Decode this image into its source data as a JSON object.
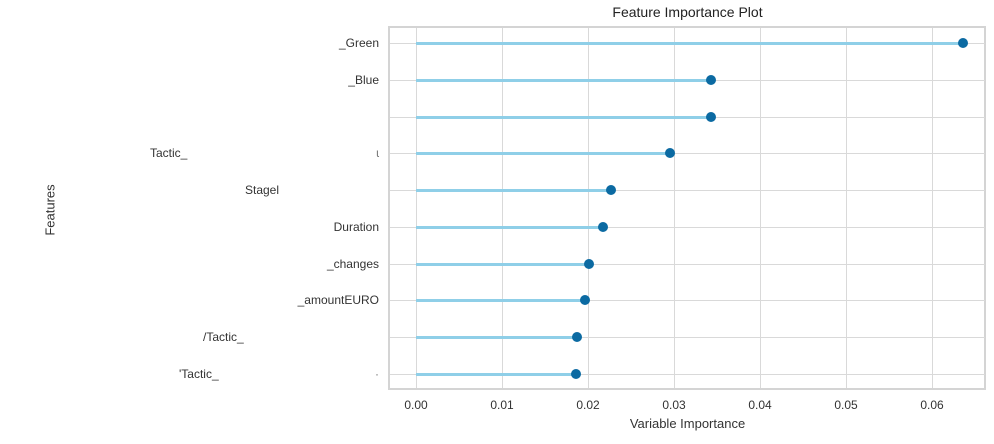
{
  "chart_data": {
    "type": "lollipop",
    "title": "Feature Importance Plot",
    "xlabel": "Variable Importance",
    "ylabel": "Features",
    "xlim": [
      -0.0033,
      0.0665
    ],
    "x_ticks": [
      "0.00",
      "0.01",
      "0.02",
      "0.03",
      "0.04",
      "0.05",
      "0.06"
    ],
    "grid": true,
    "colors": {
      "stem": "#8fcfe8",
      "dot": "#0b6aa2",
      "grid": "#d9d9d9"
    },
    "categories": [
      {
        "label_right": "_Green",
        "label_left": "",
        "value": 0.0636
      },
      {
        "label_right": "_Blue",
        "label_left": "",
        "value": 0.0343
      },
      {
        "label_right": "",
        "label_left": "",
        "value": 0.0343
      },
      {
        "label_right": "ɩ",
        "label_left": "Tactic_",
        "value": 0.0295
      },
      {
        "label_right": "",
        "label_left": "Stagel",
        "value": 0.0227
      },
      {
        "label_right": "Duration",
        "label_left": "",
        "value": 0.0217
      },
      {
        "label_right": "_changes",
        "label_left": "",
        "value": 0.0201
      },
      {
        "label_right": "_amountEURO",
        "label_left": "",
        "value": 0.0196
      },
      {
        "label_right": "",
        "label_left": "/Tactic_",
        "value": 0.0187
      },
      {
        "label_right": "·",
        "label_left": "'Tactic_",
        "value": 0.0186
      }
    ]
  },
  "labels": {
    "title": "Feature Importance Plot",
    "xlabel": "Variable Importance",
    "ylabel": "Features",
    "x_ticks": [
      "0.00",
      "0.01",
      "0.02",
      "0.03",
      "0.04",
      "0.05",
      "0.06"
    ],
    "rows": [
      {
        "right": "_Green",
        "left": ""
      },
      {
        "right": "_Blue",
        "left": ""
      },
      {
        "right": "",
        "left": ""
      },
      {
        "right": "ɩ",
        "left": "Tactic_"
      },
      {
        "right": "",
        "left": "Stagel"
      },
      {
        "right": "Duration",
        "left": ""
      },
      {
        "right": "_changes",
        "left": ""
      },
      {
        "right": "_amountEURO",
        "left": ""
      },
      {
        "right": "",
        "left": "/Tactic_"
      },
      {
        "right": "·",
        "left": "'Tactic_"
      }
    ]
  }
}
